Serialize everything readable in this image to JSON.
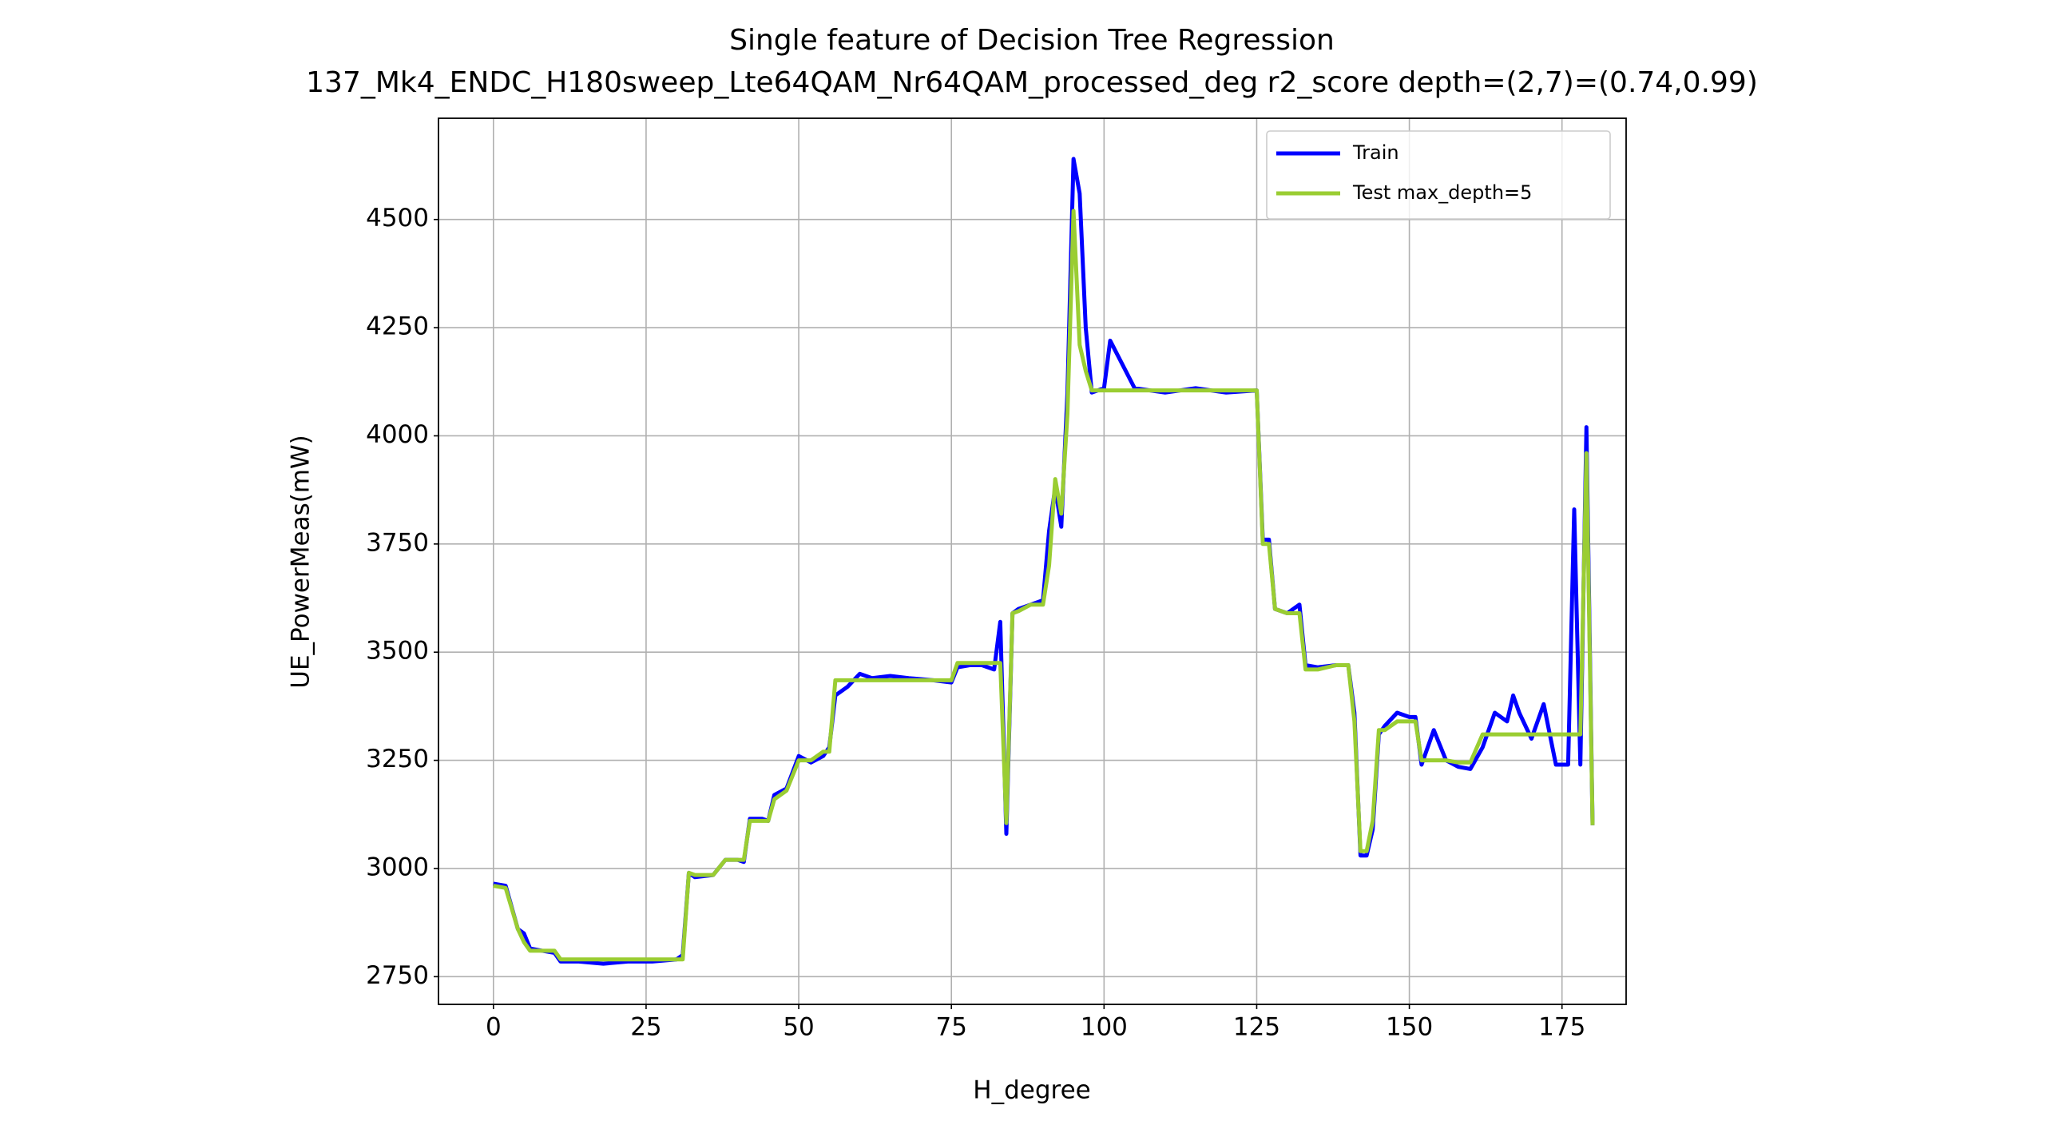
{
  "chart_data": {
    "type": "line",
    "title": "Single feature of Decision Tree Regression",
    "subtitle": "137_Mk4_ENDC_H180sweep_Lte64QAM_Nr64QAM_processed_deg r2_score depth=(2,7)=(0.74,0.99)",
    "x_label": "H_degree",
    "y_label": "UE_PowerMeas(mW)",
    "xlim": [
      -9,
      185.5
    ],
    "ylim": [
      2686,
      4734
    ],
    "xticks": [
      0,
      25,
      50,
      75,
      100,
      125,
      150,
      175
    ],
    "yticks": [
      2750,
      3000,
      3250,
      3500,
      3750,
      4000,
      4250,
      4500
    ],
    "grid": true,
    "legend_position": "upper right",
    "x": [
      0,
      2,
      4,
      5,
      6,
      8,
      10,
      11,
      14,
      18,
      22,
      26,
      30,
      31,
      32,
      33,
      36,
      38,
      40,
      41,
      42,
      44,
      45,
      46,
      48,
      50,
      52,
      54,
      55,
      56,
      58,
      60,
      62,
      65,
      68,
      72,
      75,
      76,
      78,
      80,
      82,
      83,
      84,
      85,
      86,
      88,
      90,
      91,
      92,
      93,
      94,
      95,
      96,
      97,
      98,
      100,
      101,
      105,
      110,
      115,
      120,
      125,
      126,
      127,
      128,
      130,
      132,
      133,
      135,
      138,
      140,
      141,
      142,
      143,
      144,
      145,
      146,
      148,
      150,
      151,
      152,
      154,
      156,
      158,
      160,
      162,
      164,
      166,
      167,
      168,
      170,
      172,
      174,
      176,
      177,
      178,
      179,
      180
    ],
    "series": [
      {
        "name": "Train",
        "color": "#0000ff",
        "values": [
          2965,
          2960,
          2860,
          2850,
          2815,
          2810,
          2805,
          2785,
          2785,
          2780,
          2785,
          2785,
          2790,
          2800,
          2990,
          2980,
          2985,
          3020,
          3020,
          3015,
          3115,
          3115,
          3110,
          3170,
          3185,
          3260,
          3245,
          3260,
          3280,
          3400,
          3420,
          3450,
          3440,
          3445,
          3440,
          3435,
          3430,
          3465,
          3470,
          3470,
          3460,
          3570,
          3080,
          3590,
          3600,
          3610,
          3620,
          3780,
          3880,
          3790,
          4100,
          4640,
          4560,
          4250,
          4100,
          4110,
          4220,
          4110,
          4100,
          4110,
          4100,
          4105,
          3760,
          3760,
          3600,
          3590,
          3610,
          3470,
          3465,
          3470,
          3470,
          3360,
          3030,
          3030,
          3090,
          3310,
          3330,
          3360,
          3350,
          3350,
          3240,
          3320,
          3250,
          3235,
          3230,
          3280,
          3360,
          3340,
          3400,
          3360,
          3300,
          3380,
          3240,
          3240,
          3830,
          3240,
          4020,
          3100
        ]
      },
      {
        "name": "Test max_depth=5",
        "color": "#9acd32",
        "values": [
          2960,
          2955,
          2860,
          2830,
          2810,
          2810,
          2810,
          2790,
          2790,
          2790,
          2790,
          2790,
          2790,
          2790,
          2990,
          2985,
          2985,
          3020,
          3020,
          3020,
          3110,
          3110,
          3110,
          3160,
          3180,
          3250,
          3250,
          3270,
          3270,
          3435,
          3435,
          3435,
          3435,
          3435,
          3435,
          3435,
          3435,
          3475,
          3475,
          3475,
          3475,
          3475,
          3105,
          3590,
          3595,
          3610,
          3610,
          3700,
          3900,
          3820,
          4050,
          4520,
          4210,
          4150,
          4105,
          4105,
          4105,
          4105,
          4105,
          4105,
          4105,
          4105,
          3750,
          3750,
          3600,
          3590,
          3590,
          3460,
          3460,
          3470,
          3470,
          3340,
          3040,
          3040,
          3110,
          3320,
          3320,
          3340,
          3340,
          3340,
          3250,
          3250,
          3250,
          3245,
          3245,
          3310,
          3310,
          3310,
          3310,
          3310,
          3310,
          3310,
          3310,
          3310,
          3310,
          3310,
          3960,
          3100
        ]
      }
    ]
  }
}
